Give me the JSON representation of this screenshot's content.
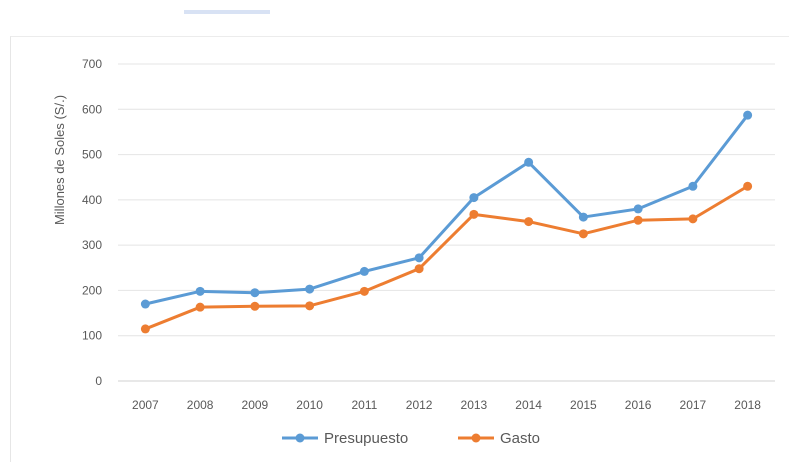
{
  "chart_data": {
    "type": "line",
    "title": "",
    "xlabel": "",
    "ylabel": "Millones de Soles (S/.)",
    "categories": [
      "2007",
      "2008",
      "2009",
      "2010",
      "2011",
      "2012",
      "2013",
      "2014",
      "2015",
      "2016",
      "2017",
      "2018"
    ],
    "ylim": [
      0,
      700
    ],
    "yticks": [
      "0",
      "100",
      "200",
      "300",
      "400",
      "500",
      "600",
      "700"
    ],
    "grid": true,
    "legend_position": "bottom",
    "series": [
      {
        "name": "Presupuesto",
        "color": "#5b9bd5",
        "values": [
          170,
          198,
          195,
          203,
          242,
          272,
          405,
          483,
          362,
          380,
          430,
          587
        ]
      },
      {
        "name": "Gasto",
        "color": "#ed7d31",
        "values": [
          115,
          163,
          165,
          166,
          198,
          248,
          368,
          352,
          325,
          355,
          358,
          430
        ]
      }
    ]
  }
}
